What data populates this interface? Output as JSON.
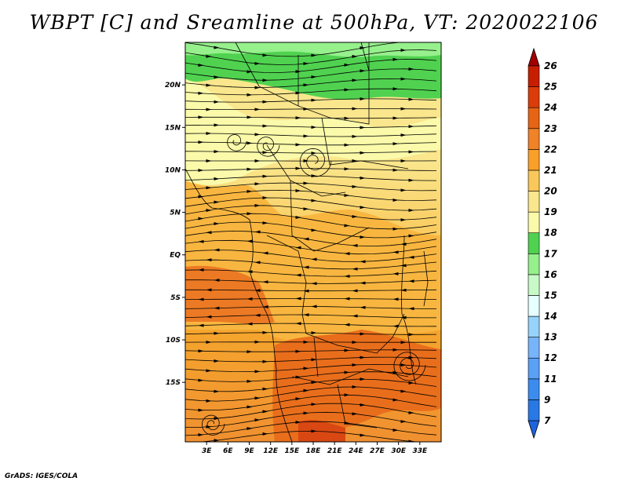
{
  "title": "WBPT [C] and Sreamline at 500hPa, VT: 2020022106",
  "credit": "GrADS: IGES/COLA",
  "map": {
    "lon_range": [
      0,
      36
    ],
    "lat_range": [
      -22,
      25
    ],
    "lat_ticks": [
      {
        "value": 20,
        "label": "20N"
      },
      {
        "value": 15,
        "label": "15N"
      },
      {
        "value": 10,
        "label": "10N"
      },
      {
        "value": 5,
        "label": "5N"
      },
      {
        "value": 0,
        "label": "EQ"
      },
      {
        "value": -5,
        "label": "5S"
      },
      {
        "value": -10,
        "label": "10S"
      },
      {
        "value": -15,
        "label": "15S"
      }
    ],
    "lon_ticks": [
      {
        "value": 3,
        "label": "3E"
      },
      {
        "value": 6,
        "label": "6E"
      },
      {
        "value": 9,
        "label": "9E"
      },
      {
        "value": 12,
        "label": "12E"
      },
      {
        "value": 15,
        "label": "15E"
      },
      {
        "value": 18,
        "label": "18E"
      },
      {
        "value": 21,
        "label": "21E"
      },
      {
        "value": 24,
        "label": "24E"
      },
      {
        "value": 27,
        "label": "27E"
      },
      {
        "value": 30,
        "label": "30E"
      },
      {
        "value": 33,
        "label": "33E"
      }
    ]
  },
  "colorbar": {
    "levels": [
      "7",
      "9",
      "11",
      "12",
      "13",
      "14",
      "15",
      "16",
      "17",
      "18",
      "19",
      "20",
      "21",
      "22",
      "23",
      "24",
      "25",
      "26"
    ],
    "colors": [
      "#1e64dc",
      "#2878e6",
      "#3c8cf0",
      "#5aa0f5",
      "#78b4fa",
      "#96d2fa",
      "#e6ffff",
      "#c8fac8",
      "#96f08c",
      "#50d250",
      "#fafaaa",
      "#fae68c",
      "#fac85a",
      "#faa028",
      "#f08228",
      "#e66414",
      "#dc3c0a",
      "#c81e00",
      "#a00000"
    ]
  }
}
